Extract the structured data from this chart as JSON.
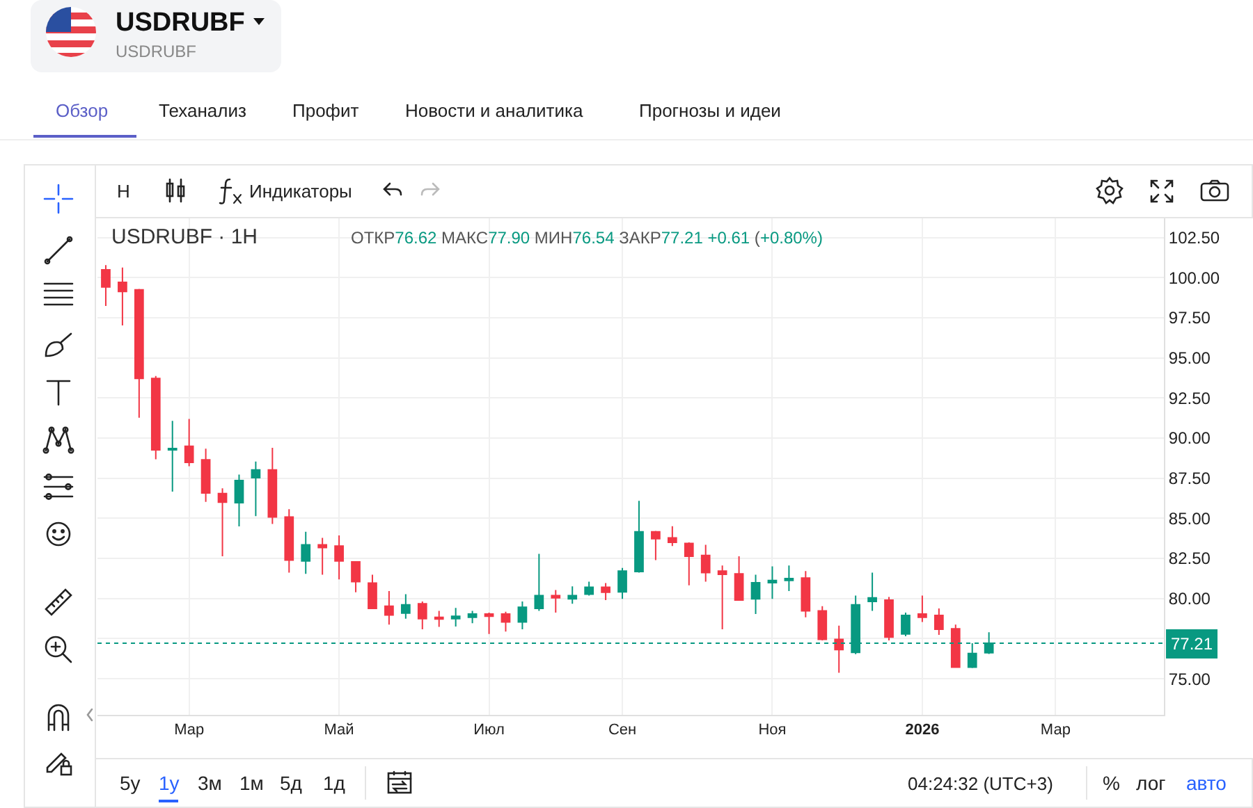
{
  "chart_data": {
    "type": "candlestick",
    "title": "USDRUBF · 1H",
    "subtitle": "ОТКР76.62 МАКС77.90 МИН76.54 ЗАКР77.21 +0.61 (+0.80%)",
    "categories": [
      null,
      null,
      null,
      null,
      null,
      "Мар",
      null,
      null,
      null,
      null,
      null,
      null,
      null,
      null,
      "Май",
      null,
      null,
      null,
      null,
      null,
      null,
      null,
      null,
      "Июл",
      null,
      null,
      null,
      null,
      null,
      null,
      null,
      "Сен",
      null,
      null,
      null,
      null,
      null,
      null,
      null,
      null,
      "Ноя",
      null,
      null,
      null,
      null,
      null,
      null,
      null,
      null,
      "2026",
      null,
      null,
      null,
      null,
      null,
      null,
      null,
      "Мар",
      null,
      null,
      null,
      null,
      null,
      null
    ],
    "ohlc": [
      [
        100.49,
        100.78,
        98.24,
        99.42
      ],
      [
        99.71,
        100.63,
        97.03,
        99.14
      ],
      [
        99.25,
        99.3,
        91.27,
        93.72
      ],
      [
        93.72,
        93.87,
        88.68,
        89.26
      ],
      [
        89.26,
        91.07,
        86.66,
        89.35
      ],
      [
        89.49,
        91.19,
        88.25,
        88.48
      ],
      [
        88.65,
        89.34,
        86.03,
        86.58
      ],
      [
        86.55,
        86.87,
        82.63,
        86.0
      ],
      [
        85.97,
        87.73,
        84.5,
        87.36
      ],
      [
        87.53,
        88.54,
        85.14,
        88.02
      ],
      [
        88.02,
        89.4,
        84.65,
        85.08
      ],
      [
        85.08,
        85.57,
        81.62,
        82.4
      ],
      [
        82.34,
        84.16,
        81.54,
        83.35
      ],
      [
        83.35,
        83.78,
        81.48,
        83.18
      ],
      [
        83.27,
        83.93,
        81.19,
        82.34
      ],
      [
        82.29,
        82.29,
        80.39,
        81.05
      ],
      [
        80.96,
        81.48,
        79.38,
        79.38
      ],
      [
        79.52,
        80.47,
        78.37,
        78.97
      ],
      [
        79.09,
        80.27,
        78.74,
        79.61
      ],
      [
        79.67,
        79.81,
        78.08,
        78.74
      ],
      [
        78.83,
        79.23,
        78.23,
        78.72
      ],
      [
        78.74,
        79.41,
        78.25,
        78.89
      ],
      [
        78.83,
        79.23,
        78.46,
        79.03
      ],
      [
        79.03,
        79.12,
        77.79,
        78.89
      ],
      [
        79.03,
        79.18,
        77.94,
        78.54
      ],
      [
        78.54,
        79.81,
        78.08,
        79.46
      ],
      [
        79.38,
        82.78,
        79.23,
        80.18
      ],
      [
        80.18,
        80.53,
        79.12,
        80.04
      ],
      [
        79.98,
        80.76,
        79.67,
        80.18
      ],
      [
        80.27,
        81.05,
        80.18,
        80.7
      ],
      [
        80.7,
        80.96,
        79.9,
        80.39
      ],
      [
        80.41,
        81.91,
        79.98,
        81.71
      ],
      [
        81.68,
        86.09,
        81.62,
        84.16
      ],
      [
        84.16,
        84.22,
        82.4,
        83.73
      ],
      [
        83.78,
        84.51,
        83.27,
        83.5
      ],
      [
        83.44,
        83.5,
        80.82,
        82.63
      ],
      [
        82.69,
        83.35,
        81.05,
        81.62
      ],
      [
        81.71,
        82.06,
        78.08,
        81.51
      ],
      [
        81.54,
        82.63,
        79.9,
        79.9
      ],
      [
        79.98,
        81.48,
        79.03,
        80.99
      ],
      [
        80.99,
        82.0,
        79.98,
        81.13
      ],
      [
        81.13,
        82.06,
        80.47,
        81.25
      ],
      [
        81.28,
        81.71,
        78.83,
        79.23
      ],
      [
        79.23,
        79.52,
        77.39,
        77.45
      ],
      [
        77.45,
        78.31,
        75.37,
        76.81
      ],
      [
        76.64,
        80.18,
        76.53,
        79.61
      ],
      [
        79.81,
        81.62,
        79.23,
        80.04
      ],
      [
        79.9,
        80.1,
        77.39,
        77.59
      ],
      [
        77.79,
        79.12,
        77.65,
        78.95
      ],
      [
        79.03,
        80.18,
        78.54,
        78.83
      ],
      [
        78.95,
        79.38,
        77.74,
        78.08
      ],
      [
        78.11,
        78.37,
        75.72,
        75.72
      ],
      [
        75.72,
        77.22,
        75.66,
        76.58
      ],
      [
        76.62,
        77.9,
        76.54,
        77.21
      ],
      null,
      null,
      null,
      null,
      null,
      null,
      null,
      null,
      null,
      null
    ],
    "colors": [
      "#f23645",
      "#f23645",
      "#f23645",
      "#f23645",
      "#089981",
      "#f23645",
      "#f23645",
      "#f23645",
      "#089981",
      "#089981",
      "#f23645",
      "#f23645",
      "#089981",
      "#f23645",
      "#f23645",
      "#f23645",
      "#f23645",
      "#f23645",
      "#089981",
      "#f23645",
      "#f23645",
      "#089981",
      "#089981",
      "#f23645",
      "#f23645",
      "#089981",
      "#089981",
      "#f23645",
      "#089981",
      "#089981",
      "#f23645",
      "#089981",
      "#089981",
      "#f23645",
      "#f23645",
      "#f23645",
      "#f23645",
      "#f23645",
      "#f23645",
      "#089981",
      "#089981",
      "#089981",
      "#f23645",
      "#f23645",
      "#f23645",
      "#089981",
      "#089981",
      "#f23645",
      "#089981",
      "#f23645",
      "#f23645",
      "#f23645",
      "#089981",
      "#089981",
      null,
      null,
      null,
      null,
      null,
      null,
      null,
      null,
      null,
      null
    ],
    "ylim": [
      72.75,
      103.7
    ],
    "yticks": [
      {
        "value": 75,
        "label": "75.00"
      },
      {
        "value": 77.5,
        "label": null
      },
      {
        "value": 80,
        "label": "80.00"
      },
      {
        "value": 82.5,
        "label": "82.50"
      },
      {
        "value": 85,
        "label": "85.00"
      },
      {
        "value": 87.5,
        "label": "87.50"
      },
      {
        "value": 90,
        "label": "90.00"
      },
      {
        "value": 92.5,
        "label": "92.50"
      },
      {
        "value": 95,
        "label": "95.00"
      },
      {
        "value": 97.5,
        "label": "97.50"
      },
      {
        "value": 100,
        "label": "100.00"
      },
      {
        "value": 102.5,
        "label": "102.50"
      }
    ],
    "ref_lines": [
      {
        "axis": "y",
        "value": 77.21,
        "label": "77.21",
        "color": "#089981",
        "line_style": "dotted"
      }
    ],
    "grid": true,
    "annotations": [
      "USDRUBF",
      "USDRUBF",
      "Обзор",
      "Теханализ",
      "Профит",
      "Новости и аналитика",
      "Прогнозы и идеи",
      "H",
      "Индикаторы",
      "5у",
      "1у",
      "3м",
      "1м",
      "5д",
      "1д",
      "04:24:32 (UTC+3)",
      "%",
      "лог",
      "авто"
    ]
  }
}
